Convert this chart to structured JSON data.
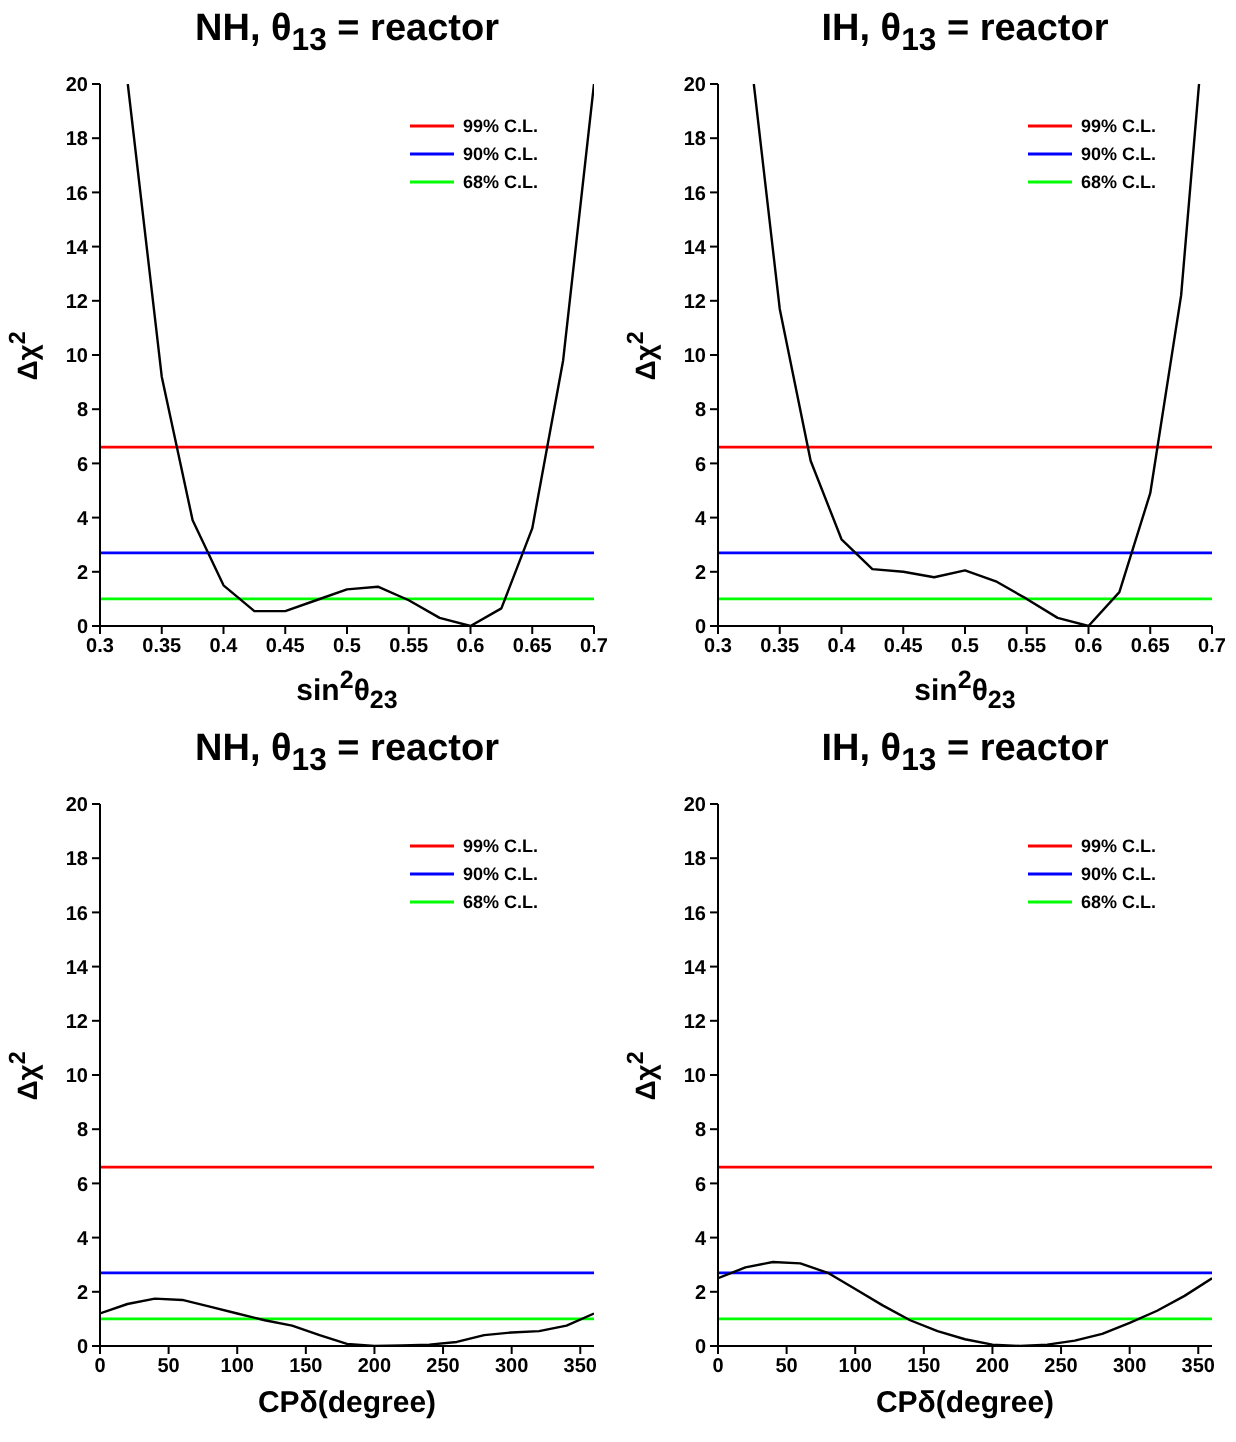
{
  "chart_data": [
    {
      "type": "line",
      "title": "NH, θ$_{13}$ = reactor",
      "xlabel": "sin$^{2}$θ$_{23}$",
      "ylabel": "Δχ$^{2}$",
      "x": [
        0.3225,
        0.35,
        0.375,
        0.4,
        0.425,
        0.45,
        0.475,
        0.5,
        0.525,
        0.55,
        0.575,
        0.6,
        0.625,
        0.65,
        0.675,
        0.7
      ],
      "series": [
        {
          "color": "#000000",
          "values": [
            20,
            9.2,
            3.9,
            1.5,
            0.55,
            0.55,
            0.95,
            1.35,
            1.45,
            0.95,
            0.3,
            0,
            0.65,
            3.6,
            9.8,
            20
          ]
        }
      ],
      "xlim": [
        0.3,
        0.7
      ],
      "xticks": [
        0.3,
        0.35,
        0.4,
        0.45,
        0.5,
        0.55,
        0.6,
        0.65,
        0.7
      ],
      "ylim": [
        0,
        20
      ],
      "yticks": [
        0,
        2,
        4,
        6,
        8,
        10,
        12,
        14,
        16,
        18,
        20
      ],
      "ref_lines": [
        {
          "axis": "y",
          "value": 6.6,
          "label": "99% C.L.",
          "color": "#ff0000"
        },
        {
          "axis": "y",
          "value": 2.7,
          "label": "90% C.L.",
          "color": "#0000ff"
        },
        {
          "axis": "y",
          "value": 1,
          "label": "68% C.L.",
          "color": "#00ff00"
        }
      ],
      "legend": "top right"
    },
    {
      "type": "line",
      "title": "IH, θ$_{13}$ = reactor",
      "xlabel": "sin$^{2}$θ$_{23}$",
      "ylabel": "Δχ$^{2}$",
      "x": [
        0.329,
        0.35,
        0.375,
        0.4,
        0.425,
        0.45,
        0.475,
        0.5,
        0.525,
        0.55,
        0.575,
        0.6,
        0.625,
        0.65,
        0.675,
        0.6895
      ],
      "series": [
        {
          "color": "#000000",
          "values": [
            20,
            11.7,
            6.1,
            3.2,
            2.1,
            2,
            1.8,
            2.05,
            1.65,
            1,
            0.3,
            0,
            1.25,
            4.9,
            12.2,
            20
          ]
        }
      ],
      "xlim": [
        0.3,
        0.7
      ],
      "xticks": [
        0.3,
        0.35,
        0.4,
        0.45,
        0.5,
        0.55,
        0.6,
        0.65,
        0.7
      ],
      "ylim": [
        0,
        20
      ],
      "yticks": [
        0,
        2,
        4,
        6,
        8,
        10,
        12,
        14,
        16,
        18,
        20
      ],
      "ref_lines": [
        {
          "axis": "y",
          "value": 6.6,
          "label": "99% C.L.",
          "color": "#ff0000"
        },
        {
          "axis": "y",
          "value": 2.7,
          "label": "90% C.L.",
          "color": "#0000ff"
        },
        {
          "axis": "y",
          "value": 1,
          "label": "68% C.L.",
          "color": "#00ff00"
        }
      ],
      "legend": "top right"
    },
    {
      "type": "line",
      "title": "NH, θ$_{13}$ = reactor",
      "xlabel": "CPδ(degree)",
      "ylabel": "Δχ$^{2}$",
      "x": [
        0,
        20,
        40,
        60,
        80,
        100,
        120,
        140,
        160,
        180,
        200,
        220,
        240,
        260,
        280,
        300,
        320,
        340,
        360
      ],
      "series": [
        {
          "color": "#000000",
          "values": [
            1.2,
            1.55,
            1.75,
            1.7,
            1.45,
            1.2,
            0.95,
            0.75,
            0.4,
            0.08,
            0,
            0.02,
            0.05,
            0.15,
            0.4,
            0.5,
            0.55,
            0.75,
            1.2
          ]
        }
      ],
      "xlim": [
        0,
        360
      ],
      "xticks": [
        0,
        50,
        100,
        150,
        200,
        250,
        300,
        350
      ],
      "ylim": [
        0,
        20
      ],
      "yticks": [
        0,
        2,
        4,
        6,
        8,
        10,
        12,
        14,
        16,
        18,
        20
      ],
      "ref_lines": [
        {
          "axis": "y",
          "value": 6.6,
          "label": "99% C.L.",
          "color": "#ff0000"
        },
        {
          "axis": "y",
          "value": 2.7,
          "label": "90% C.L.",
          "color": "#0000ff"
        },
        {
          "axis": "y",
          "value": 1,
          "label": "68% C.L.",
          "color": "#00ff00"
        }
      ],
      "legend": "top right"
    },
    {
      "type": "line",
      "title": "IH, θ$_{13}$ = reactor",
      "xlabel": "CPδ(degree)",
      "ylabel": "Δχ$^{2}$",
      "x": [
        0,
        20,
        40,
        60,
        80,
        100,
        120,
        140,
        160,
        180,
        200,
        220,
        240,
        260,
        280,
        300,
        320,
        340,
        360
      ],
      "series": [
        {
          "color": "#000000",
          "values": [
            2.5,
            2.9,
            3.1,
            3.05,
            2.7,
            2.1,
            1.5,
            0.95,
            0.55,
            0.25,
            0.05,
            0,
            0.05,
            0.2,
            0.45,
            0.85,
            1.3,
            1.85,
            2.5
          ]
        }
      ],
      "xlim": [
        0,
        360
      ],
      "xticks": [
        0,
        50,
        100,
        150,
        200,
        250,
        300,
        350
      ],
      "ylim": [
        0,
        20
      ],
      "yticks": [
        0,
        2,
        4,
        6,
        8,
        10,
        12,
        14,
        16,
        18,
        20
      ],
      "ref_lines": [
        {
          "axis": "y",
          "value": 6.6,
          "label": "99% C.L.",
          "color": "#ff0000"
        },
        {
          "axis": "y",
          "value": 2.7,
          "label": "90% C.L.",
          "color": "#0000ff"
        },
        {
          "axis": "y",
          "value": 1,
          "label": "68% C.L.",
          "color": "#00ff00"
        }
      ],
      "legend": "top right"
    }
  ]
}
